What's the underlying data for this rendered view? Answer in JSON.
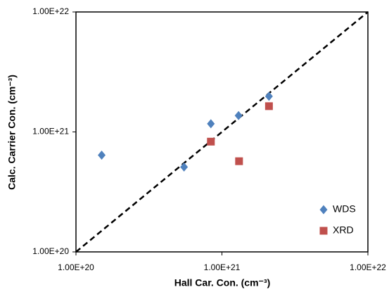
{
  "chart_data": {
    "type": "scatter",
    "log_x": true,
    "log_y": true,
    "grid": false,
    "legend": "lower right",
    "x_label": "Hall Car. Con. (cm⁻³)",
    "y_label": "Calc. Carrier Con. (cm⁻³)",
    "xlim": [
      1e+20,
      1e+22
    ],
    "ylim": [
      1e+20,
      1e+22
    ],
    "xticks": [
      {
        "value": 1e+20,
        "label": "1.00E+20"
      },
      {
        "value": 1e+21,
        "label": "1.00E+21"
      },
      {
        "value": 1e+22,
        "label": "1.00E+22"
      }
    ],
    "yticks": [
      {
        "value": 1e+20,
        "label": "1.00E+20"
      },
      {
        "value": 1e+21,
        "label": "1.00E+21"
      },
      {
        "value": 1e+22,
        "label": "1.00E+22"
      }
    ],
    "series": [
      {
        "name": "WDS",
        "color": "#4f81bd",
        "marker": "diamond",
        "x": [
          1.5e+20,
          5.5e+20,
          8.4e+20,
          1.3e+21,
          2.1e+21
        ],
        "values": [
          6.4e+20,
          5.1e+20,
          1.17e+21,
          1.37e+21,
          1.98e+21
        ]
      },
      {
        "name": "XRD",
        "color": "#c0504d",
        "marker": "square",
        "x": [
          8.4e+20,
          1.31e+21,
          2.1e+21
        ],
        "values": [
          8.3e+20,
          5.7e+20,
          1.64e+21
        ]
      }
    ]
  }
}
